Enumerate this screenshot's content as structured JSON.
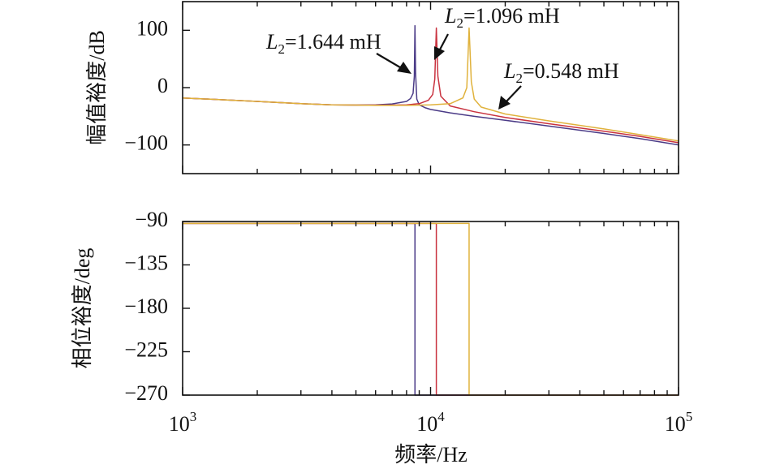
{
  "chart_data": [
    {
      "type": "line",
      "panel": "magnitude",
      "ylabel": "幅值裕度/dB",
      "xlabel": "",
      "xscale": "log",
      "xlim": [
        1000,
        100000
      ],
      "ylim": [
        -150,
        150
      ],
      "yticks": [
        {
          "value": 100,
          "label": "100"
        },
        {
          "value": 0,
          "label": "0"
        },
        {
          "value": -100,
          "label": "−100"
        }
      ],
      "grid": false,
      "series": [
        {
          "name": "L2=1.644 mH",
          "color": "#4b3b87",
          "x": [
            1000,
            2000,
            3000,
            4000,
            5000,
            6000,
            7000,
            8000,
            8300,
            8500,
            8600,
            8650,
            8700,
            8800,
            9000,
            9500,
            10000,
            12000,
            15000,
            20000,
            30000,
            50000,
            70000,
            100000
          ],
          "y": [
            -18,
            -24,
            -28,
            -30,
            -30.5,
            -30,
            -28.5,
            -24,
            -19,
            -10,
            20,
            108,
            25,
            -20,
            -30,
            -35,
            -38,
            -44,
            -50,
            -57,
            -67,
            -80,
            -89,
            -100
          ]
        },
        {
          "name": "L2=1.096 mH",
          "color": "#c9323f",
          "x": [
            1000,
            2000,
            3000,
            4000,
            5000,
            6000,
            7000,
            8000,
            9000,
            9800,
            10200,
            10400,
            10550,
            10700,
            11000,
            12000,
            15000,
            20000,
            30000,
            50000,
            70000,
            100000
          ],
          "y": [
            -18,
            -24,
            -28,
            -30,
            -30.5,
            -30.5,
            -30.5,
            -30,
            -28,
            -22,
            -12,
            15,
            104,
            20,
            -15,
            -32,
            -42,
            -52,
            -63,
            -76,
            -85,
            -96
          ]
        },
        {
          "name": "L2=0.548 mH",
          "color": "#e0b23c",
          "x": [
            1000,
            2000,
            3000,
            4000,
            5000,
            6000,
            7000,
            8000,
            10000,
            12000,
            13500,
            14000,
            14300,
            14600,
            15000,
            16000,
            20000,
            30000,
            50000,
            70000,
            100000
          ],
          "y": [
            -18,
            -24,
            -28,
            -30,
            -30.5,
            -31,
            -31,
            -31,
            -30,
            -28,
            -18,
            0,
            104,
            10,
            -20,
            -34,
            -46,
            -58,
            -72,
            -82,
            -93
          ]
        }
      ],
      "annotations": [
        {
          "var": "L",
          "sub": "2",
          "text": "=1.644 mH"
        },
        {
          "var": "L",
          "sub": "2",
          "text": "=1.096 mH"
        },
        {
          "var": "L",
          "sub": "2",
          "text": "=0.548 mH"
        }
      ]
    },
    {
      "type": "line",
      "panel": "phase",
      "ylabel": "相位裕度/deg",
      "xlabel": "频率/Hz",
      "xscale": "log",
      "xlim": [
        1000,
        100000
      ],
      "ylim": [
        -270,
        -90
      ],
      "yticks": [
        {
          "value": -90,
          "label": "−90"
        },
        {
          "value": -135,
          "label": "−135"
        },
        {
          "value": -180,
          "label": "−180"
        },
        {
          "value": -225,
          "label": "−225"
        },
        {
          "value": -270,
          "label": "−270"
        }
      ],
      "xticks": [
        {
          "value": 1000,
          "base": "10",
          "exp": "3"
        },
        {
          "value": 10000,
          "base": "10",
          "exp": "4"
        },
        {
          "value": 100000,
          "base": "10",
          "exp": "5"
        }
      ],
      "grid": false,
      "series": [
        {
          "name": "L2=1.644 mH",
          "color": "#4b3b87",
          "x": [
            1000,
            8650,
            8650,
            100000
          ],
          "y": [
            -92,
            -92,
            -270,
            -270
          ]
        },
        {
          "name": "L2=1.096 mH",
          "color": "#c9323f",
          "x": [
            1000,
            10550,
            10550,
            100000
          ],
          "y": [
            -92,
            -92,
            -270,
            -270
          ]
        },
        {
          "name": "L2=0.548 mH",
          "color": "#e0b23c",
          "x": [
            1000,
            14300,
            14300,
            100000
          ],
          "y": [
            -92,
            -92,
            -270,
            -270
          ]
        }
      ]
    }
  ]
}
